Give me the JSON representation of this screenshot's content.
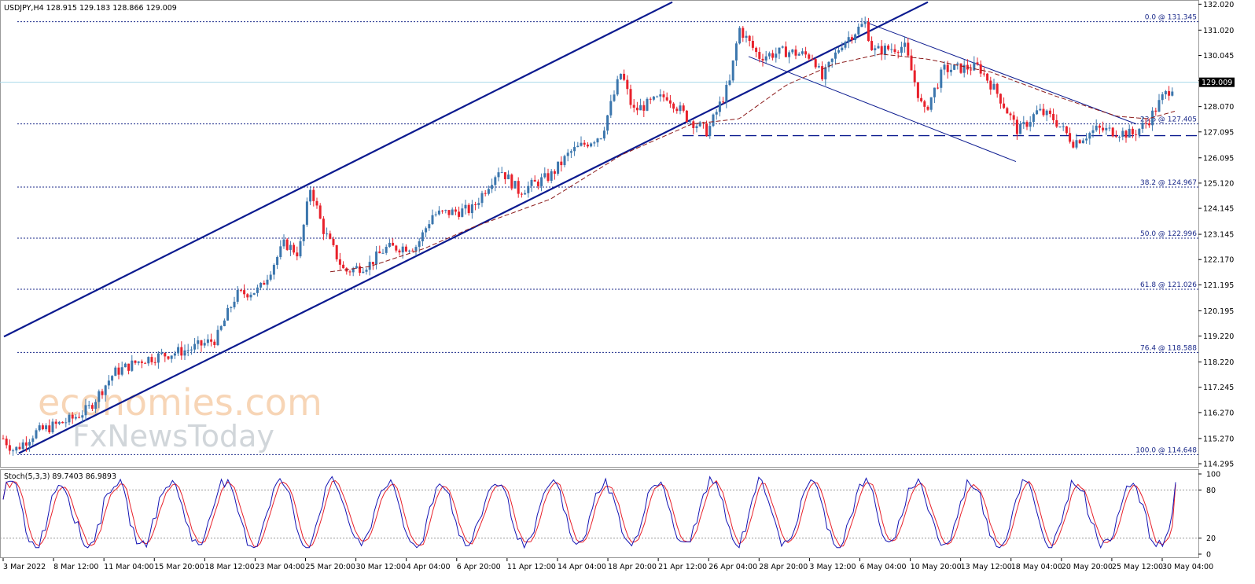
{
  "chart_data": [
    {
      "type": "candlestick",
      "title": "USDJPY,H4  128.915 129.183 128.866 129.009",
      "symbol": "USDJPY",
      "timeframe": "H4",
      "ohlc_header": {
        "open": 128.915,
        "high": 129.183,
        "low": 128.866,
        "close": 129.009
      },
      "current_price_label": "129.009",
      "ylim": [
        114.295,
        132.0
      ],
      "y_ticks": [
        "132.020",
        "131.020",
        "130.045",
        "129.070",
        "128.070",
        "127.095",
        "126.095",
        "125.120",
        "124.145",
        "123.145",
        "122.170",
        "121.195",
        "120.195",
        "119.220",
        "118.220",
        "117.245",
        "116.270",
        "115.270",
        "114.295"
      ],
      "x_ticks": [
        "3 Mar 2022",
        "8 Mar 12:00",
        "11 Mar 04:00",
        "15 Mar 20:00",
        "18 Mar 12:00",
        "23 Mar 04:00",
        "25 Mar 20:00",
        "30 Mar 12:00",
        "4 Apr 04:00",
        "6 Apr 20:00",
        "11 Apr 12:00",
        "14 Apr 04:00",
        "18 Apr 20:00",
        "21 Apr 12:00",
        "26 Apr 04:00",
        "28 Apr 20:00",
        "3 May 12:00",
        "6 May 04:00",
        "10 May 20:00",
        "13 May 12:00",
        "18 May 04:00",
        "20 May 20:00",
        "25 May 12:00",
        "30 May 04:00"
      ],
      "fibonacci_levels": [
        {
          "label": "0.0 @ 131.345",
          "value": 131.345
        },
        {
          "label": "23.6 @ 127.405",
          "value": 127.405
        },
        {
          "label": "38.2 @ 124.967",
          "value": 124.967
        },
        {
          "label": "50.0 @ 122.996",
          "value": 122.996
        },
        {
          "label": "61.8 @ 121.026",
          "value": 121.026
        },
        {
          "label": "76.4 @ 118.588",
          "value": 118.588
        },
        {
          "label": "100.0 @ 114.648",
          "value": 114.648
        }
      ],
      "close_anchors": [
        {
          "x": 3,
          "y": 115.3
        },
        {
          "x": 18,
          "y": 114.8
        },
        {
          "x": 45,
          "y": 115.5
        },
        {
          "x": 90,
          "y": 116.0
        },
        {
          "x": 112,
          "y": 116.4
        },
        {
          "x": 145,
          "y": 117.8
        },
        {
          "x": 180,
          "y": 118.3
        },
        {
          "x": 240,
          "y": 118.7
        },
        {
          "x": 275,
          "y": 119.1
        },
        {
          "x": 300,
          "y": 120.8
        },
        {
          "x": 330,
          "y": 121.0
        },
        {
          "x": 362,
          "y": 122.8
        },
        {
          "x": 380,
          "y": 122.4
        },
        {
          "x": 395,
          "y": 125.0
        },
        {
          "x": 410,
          "y": 123.4
        },
        {
          "x": 438,
          "y": 121.7
        },
        {
          "x": 470,
          "y": 122.0
        },
        {
          "x": 490,
          "y": 122.6
        },
        {
          "x": 530,
          "y": 122.7
        },
        {
          "x": 550,
          "y": 123.9
        },
        {
          "x": 600,
          "y": 124.1
        },
        {
          "x": 635,
          "y": 125.7
        },
        {
          "x": 660,
          "y": 124.8
        },
        {
          "x": 700,
          "y": 125.4
        },
        {
          "x": 725,
          "y": 126.3
        },
        {
          "x": 765,
          "y": 127.0
        },
        {
          "x": 790,
          "y": 129.4
        },
        {
          "x": 805,
          "y": 127.9
        },
        {
          "x": 848,
          "y": 128.5
        },
        {
          "x": 875,
          "y": 127.6
        },
        {
          "x": 900,
          "y": 127.1
        },
        {
          "x": 928,
          "y": 129.0
        },
        {
          "x": 940,
          "y": 131.1
        },
        {
          "x": 965,
          "y": 130.0
        },
        {
          "x": 1000,
          "y": 130.2
        },
        {
          "x": 1035,
          "y": 130.0
        },
        {
          "x": 1045,
          "y": 129.1
        },
        {
          "x": 1070,
          "y": 130.5
        },
        {
          "x": 1100,
          "y": 131.3
        },
        {
          "x": 1110,
          "y": 130.2
        },
        {
          "x": 1150,
          "y": 130.4
        },
        {
          "x": 1175,
          "y": 127.8
        },
        {
          "x": 1200,
          "y": 129.5
        },
        {
          "x": 1245,
          "y": 129.6
        },
        {
          "x": 1270,
          "y": 128.5
        },
        {
          "x": 1295,
          "y": 127.1
        },
        {
          "x": 1320,
          "y": 127.9
        },
        {
          "x": 1340,
          "y": 127.6
        },
        {
          "x": 1365,
          "y": 126.7
        },
        {
          "x": 1395,
          "y": 127.2
        },
        {
          "x": 1420,
          "y": 127.1
        },
        {
          "x": 1440,
          "y": 127.0
        },
        {
          "x": 1460,
          "y": 127.5
        },
        {
          "x": 1478,
          "y": 128.4
        },
        {
          "x": 1495,
          "y": 129.009
        }
      ],
      "moving_average_anchors": [
        {
          "x": 420,
          "y": 121.7
        },
        {
          "x": 470,
          "y": 121.9
        },
        {
          "x": 540,
          "y": 122.6
        },
        {
          "x": 600,
          "y": 123.4
        },
        {
          "x": 700,
          "y": 124.5
        },
        {
          "x": 790,
          "y": 126.2
        },
        {
          "x": 880,
          "y": 127.4
        },
        {
          "x": 940,
          "y": 127.6
        },
        {
          "x": 1000,
          "y": 128.9
        },
        {
          "x": 1060,
          "y": 129.7
        },
        {
          "x": 1120,
          "y": 130.1
        },
        {
          "x": 1180,
          "y": 129.9
        },
        {
          "x": 1260,
          "y": 129.4
        },
        {
          "x": 1340,
          "y": 128.5
        },
        {
          "x": 1420,
          "y": 127.7
        },
        {
          "x": 1460,
          "y": 127.6
        },
        {
          "x": 1495,
          "y": 127.9
        }
      ],
      "trendlines": [
        {
          "name": "channel-upper",
          "p1": {
            "x": 5,
            "y": 119.2
          },
          "p2": {
            "x": 855,
            "y": 132.1
          }
        },
        {
          "name": "channel-lower",
          "p1": {
            "x": 24,
            "y": 114.7
          },
          "p2": {
            "x": 1180,
            "y": 132.1
          }
        },
        {
          "name": "descending-channel-upper",
          "p1": {
            "x": 1103,
            "y": 131.3
          },
          "p2": {
            "x": 1445,
            "y": 127.4
          }
        },
        {
          "name": "descending-channel-lower",
          "p1": {
            "x": 952,
            "y": 130.0
          },
          "p2": {
            "x": 1292,
            "y": 125.95
          }
        }
      ],
      "support_line": {
        "value": 126.95,
        "x_start": 868,
        "x_end": 1525
      },
      "colors": {
        "bull": "#3b76ad",
        "bear": "#e8212b",
        "channel": "#0b1a8f",
        "fib": "#1b2a8a",
        "ma": "#8b1a1a",
        "price_line": "#a8d8ea",
        "stoch_main": "#1414b4",
        "stoch_signal": "#e8212b"
      }
    },
    {
      "type": "line",
      "title": "Stoch(5,3,3) 89.7403 86.9893",
      "indicator": "Stochastic Oscillator",
      "parameters": "5,3,3",
      "main_value": 89.7403,
      "signal_value": 86.9893,
      "ylim": [
        0,
        100
      ],
      "y_ticks": [
        "100",
        "80",
        "20",
        "0"
      ],
      "levels": [
        80,
        20
      ]
    }
  ],
  "watermark": {
    "line1": "economies.com",
    "line2": "FxNewsToday"
  }
}
